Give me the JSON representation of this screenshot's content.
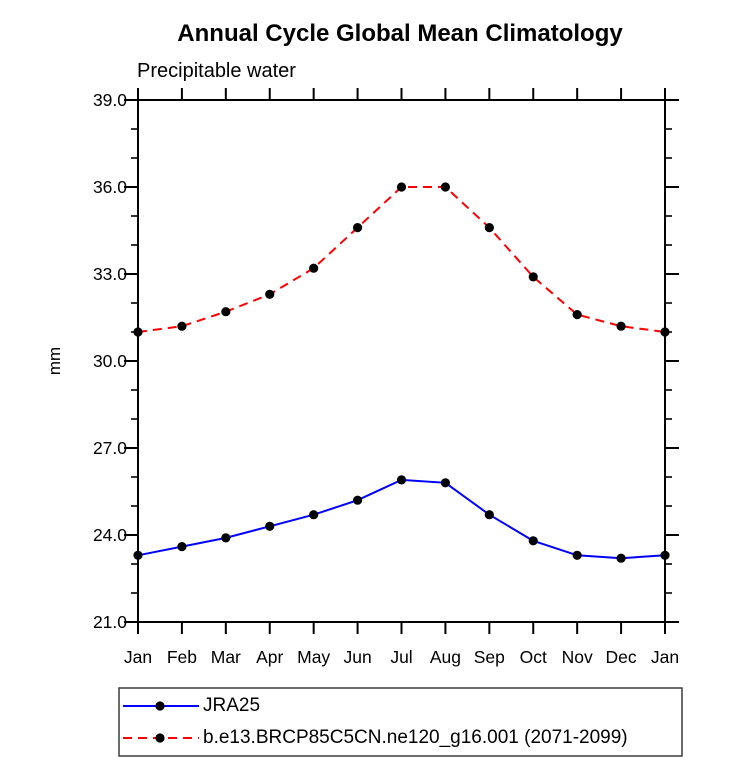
{
  "title": "Annual Cycle Global Mean Climatology",
  "subtitle": "Precipitable water",
  "chart_data": {
    "type": "line",
    "categories": [
      "Jan",
      "Feb",
      "Mar",
      "Apr",
      "May",
      "Jun",
      "Jul",
      "Aug",
      "Sep",
      "Oct",
      "Nov",
      "Dec",
      "Jan"
    ],
    "series": [
      {
        "name": "JRA25",
        "color": "#0000ff",
        "line_style": "solid",
        "marker": "black-dot",
        "values": [
          23.3,
          23.6,
          23.9,
          24.3,
          24.7,
          25.2,
          25.9,
          25.8,
          24.7,
          23.8,
          23.3,
          23.2,
          23.3
        ]
      },
      {
        "name": "b.e13.BRCP85C5CN.ne120_g16.001 (2071-2099)",
        "color": "#ff0000",
        "line_style": "dashed",
        "marker": "black-dot",
        "values": [
          31.0,
          31.2,
          31.7,
          32.3,
          33.2,
          34.6,
          36.0,
          36.0,
          34.6,
          32.9,
          31.6,
          31.2,
          31.0
        ]
      }
    ],
    "xlabel": "",
    "ylabel": "mm",
    "ylim": [
      21.0,
      39.0
    ],
    "y_major_ticks": [
      21,
      24,
      27,
      30,
      33,
      36,
      39
    ],
    "y_tick_labels": [
      "21.0",
      "24.0",
      "27.0",
      "30.0",
      "33.0",
      "36.0",
      "39.0"
    ],
    "y_minor_step": 1.0,
    "grid": false,
    "frame": "box-with-outward-ticks",
    "legend_position": "bottom-left-box"
  },
  "colors": {
    "axis": "#000000",
    "text": "#000000",
    "marker": "#000000",
    "legend_border": "#3c3c3c",
    "background": "#ffffff"
  }
}
